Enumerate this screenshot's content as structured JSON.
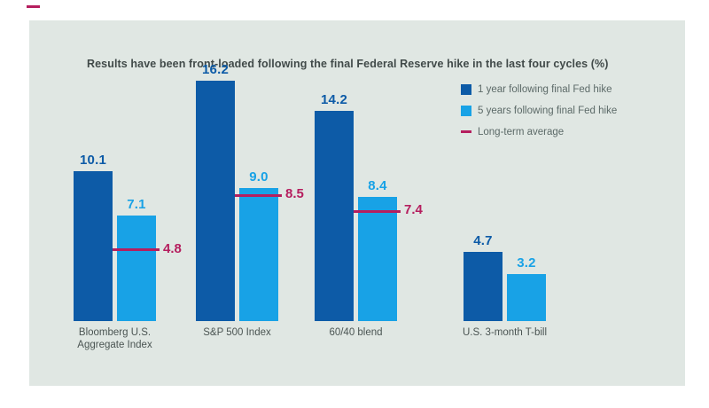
{
  "title": "Results have been front-loaded following the final Federal Reserve hike in the last four cycles (%)",
  "legend": {
    "items": [
      {
        "label": "1 year following final Fed hike",
        "swatch": "square",
        "color_key": "dark_blue"
      },
      {
        "label": "5 years following final Fed hike",
        "swatch": "square",
        "color_key": "light_blue"
      },
      {
        "label": "Long-term average",
        "swatch": "dash",
        "color_key": "crimson"
      }
    ]
  },
  "colors": {
    "dark_blue": "#0d5ba7",
    "light_blue": "#18a2e6",
    "crimson": "#b51e5e",
    "panel_bg": "#e0e7e3",
    "title_text": "#414a49",
    "axis_text": "#4b5553",
    "legend_text": "#5c6a68"
  },
  "chart_data": {
    "type": "bar",
    "title": "Results have been front-loaded following the final Federal Reserve hike in the last four cycles (%)",
    "categories": [
      "Bloomberg U.S. Aggregate Index",
      "S&P 500 Index",
      "60/40 blend",
      "U.S. 3-month T-bill"
    ],
    "series": [
      {
        "name": "1 year following final Fed hike",
        "values": [
          10.1,
          16.2,
          14.2,
          4.7
        ]
      },
      {
        "name": "5 years following final Fed hike",
        "values": [
          7.1,
          9.0,
          8.4,
          3.2
        ]
      }
    ],
    "averages": {
      "name": "Long-term average",
      "values": [
        4.8,
        8.5,
        7.4,
        null
      ]
    },
    "value_labels_shown": true,
    "xlabel": "",
    "ylabel": "",
    "ylim": [
      0,
      18
    ],
    "grid": false,
    "axis_lines": false,
    "legend_position": "top-right"
  }
}
